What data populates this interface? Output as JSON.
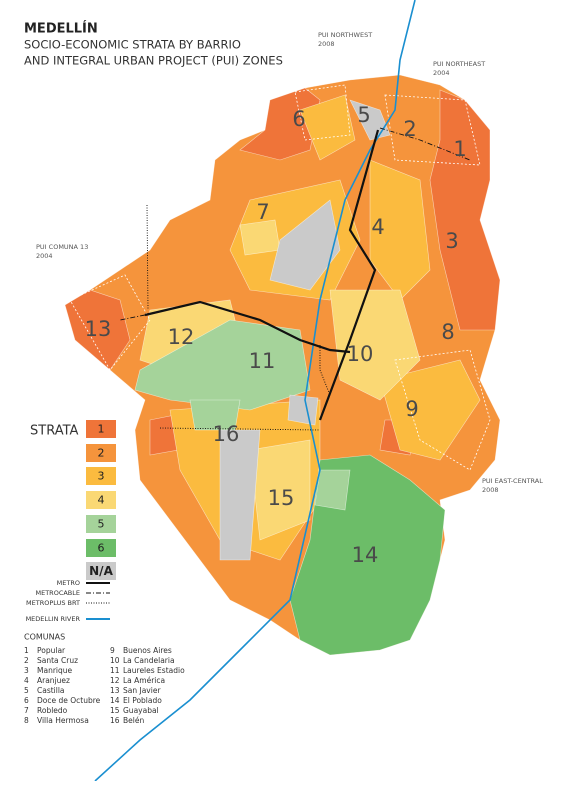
{
  "title": "MEDELLÍN",
  "subtitle": [
    "SOCIO-ECONOMIC STRATA BY BARRIO",
    "AND INTEGRAL URBAN PROJECT (PUI) ZONES"
  ],
  "pui_zones": [
    {
      "name": "PUI NORTHWEST",
      "year": "2008"
    },
    {
      "name": "PUI NORTHEAST",
      "year": "2004"
    },
    {
      "name": "PUI COMUNA 13",
      "year": "2004"
    },
    {
      "name": "PUI EAST-CENTRAL",
      "year": "2008"
    }
  ],
  "comuna_labels": [
    "1",
    "2",
    "3",
    "4",
    "5",
    "6",
    "7",
    "8",
    "9",
    "10",
    "11",
    "12",
    "13",
    "14",
    "15",
    "16"
  ],
  "legend": {
    "title": "STRATA",
    "strata": [
      {
        "label": "1",
        "color": "#ef7439"
      },
      {
        "label": "2",
        "color": "#f5943c"
      },
      {
        "label": "3",
        "color": "#fbbb3f"
      },
      {
        "label": "4",
        "color": "#fad874"
      },
      {
        "label": "5",
        "color": "#a5d39a"
      },
      {
        "label": "6",
        "color": "#6cbd68"
      },
      {
        "label": "N/A",
        "color": "#cacaca"
      }
    ]
  },
  "lines": [
    {
      "name": "METRO",
      "color": "#111111",
      "style": "solid"
    },
    {
      "name": "METROCABLE",
      "color": "#111111",
      "style": "dashdot"
    },
    {
      "name": "METROPLUS BRT",
      "color": "#111111",
      "style": "dotted"
    },
    {
      "name": "MEDELLIN RIVER",
      "color": "#1a8fd0",
      "style": "solid"
    }
  ],
  "comunas": {
    "title": "COMUNAS",
    "items": [
      {
        "number": "1",
        "name": "Popular"
      },
      {
        "number": "2",
        "name": "Santa Cruz"
      },
      {
        "number": "3",
        "name": "Manrique"
      },
      {
        "number": "4",
        "name": "Aranjuez"
      },
      {
        "number": "5",
        "name": "Castilla"
      },
      {
        "number": "6",
        "name": "Doce de Octubre"
      },
      {
        "number": "7",
        "name": "Robledo"
      },
      {
        "number": "8",
        "name": "Villa Hermosa"
      },
      {
        "number": "9",
        "name": "Buenos Aires"
      },
      {
        "number": "10",
        "name": "La Candelaria"
      },
      {
        "number": "11",
        "name": "Laureles Estadio"
      },
      {
        "number": "12",
        "name": "La América"
      },
      {
        "number": "13",
        "name": "San Javier"
      },
      {
        "number": "14",
        "name": "El Poblado"
      },
      {
        "number": "15",
        "name": "Guayabal"
      },
      {
        "number": "16",
        "name": "Belén"
      }
    ]
  }
}
